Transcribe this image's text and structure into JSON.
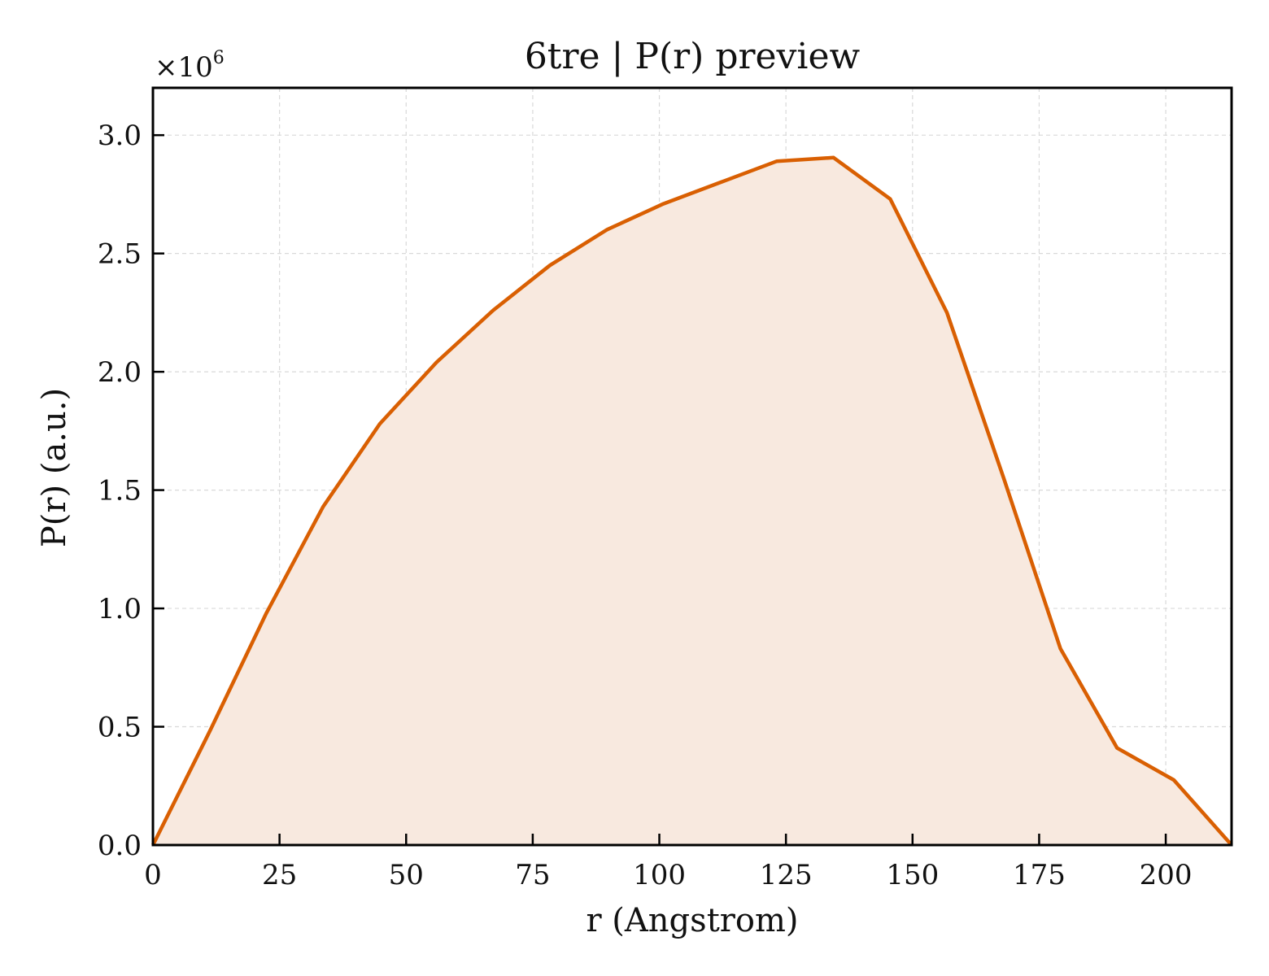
{
  "chart_data": {
    "type": "area",
    "title": "6tre | P(r) preview",
    "xlabel": "r (Angstrom)",
    "ylabel": "P(r) (a.u.)",
    "y_multiplier_label": "×10",
    "y_multiplier_exponent": "6",
    "xlim": [
      0,
      213
    ],
    "ylim": [
      0,
      3.2
    ],
    "x_ticks": [
      0,
      25,
      50,
      75,
      100,
      125,
      150,
      175,
      200
    ],
    "x_tick_labels": [
      "0",
      "25",
      "50",
      "75",
      "100",
      "125",
      "150",
      "175",
      "200"
    ],
    "y_ticks": [
      0,
      0.5,
      1.0,
      1.5,
      2.0,
      2.5,
      3.0
    ],
    "y_tick_labels": [
      "0.0",
      "0.5",
      "1.0",
      "1.5",
      "2.0",
      "2.5",
      "3.0"
    ],
    "grid": true,
    "series": [
      {
        "x": [
          0,
          11.2,
          22.4,
          33.6,
          44.8,
          56.0,
          67.2,
          78.4,
          89.6,
          100.8,
          112.0,
          123.2,
          134.4,
          145.6,
          156.8,
          168.0,
          179.2,
          190.4,
          201.6,
          213.0
        ],
        "y": [
          0.0,
          0.48,
          0.98,
          1.43,
          1.78,
          2.04,
          2.26,
          2.45,
          2.6,
          2.71,
          2.8,
          2.89,
          2.905,
          2.73,
          2.25,
          1.55,
          0.83,
          0.41,
          0.275,
          0.0
        ]
      }
    ],
    "colors": {
      "line": "#d95f02",
      "fill": "#f8e9df",
      "grid": "#d9d9d9",
      "axes": "#000000"
    }
  }
}
